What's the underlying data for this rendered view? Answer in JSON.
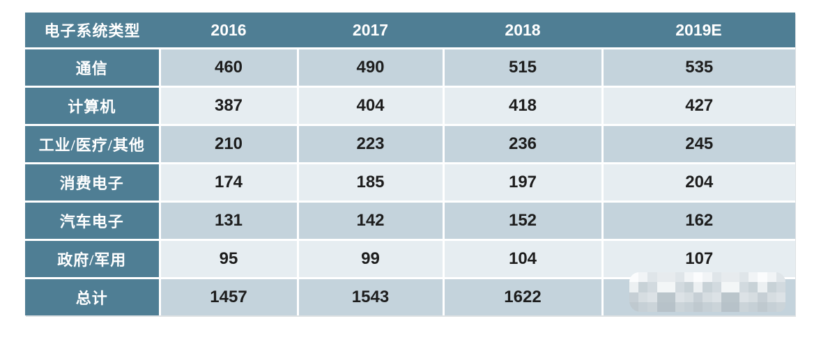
{
  "chart_data": {
    "type": "table",
    "title": "",
    "header_label": "电子系统类型",
    "columns": [
      "2016",
      "2017",
      "2018",
      "2019E"
    ],
    "rows": [
      {
        "label": "通信",
        "values": [
          460,
          490,
          515,
          535
        ]
      },
      {
        "label": "计算机",
        "values": [
          387,
          404,
          418,
          427
        ]
      },
      {
        "label": "工业/医疗/其他",
        "values": [
          210,
          223,
          236,
          245
        ]
      },
      {
        "label": "消费电子",
        "values": [
          174,
          185,
          197,
          204
        ]
      },
      {
        "label": "汽车电子",
        "values": [
          131,
          142,
          152,
          162
        ]
      },
      {
        "label": "政府/军用",
        "values": [
          95,
          99,
          104,
          107
        ]
      },
      {
        "label": "总计",
        "values": [
          1457,
          1543,
          1622,
          null
        ],
        "last_cell_masked_by_watermark": true
      }
    ],
    "layout": {
      "header_row_continuous": true,
      "alternating_rows": "dark,light starting dark",
      "cell_gap_color": "#ffffff"
    }
  },
  "colors": {
    "header_bg": "#4f7e94",
    "label_col_bg": "#4f7e94",
    "row_dark_bg": "#c4d3dc",
    "row_light_bg": "#e6edf1",
    "header_text": "#ffffff",
    "value_text": "#1d1d1d"
  },
  "watermark": {
    "style": "pixelated-mosaic",
    "covers": "total-row-2019E-cell"
  }
}
